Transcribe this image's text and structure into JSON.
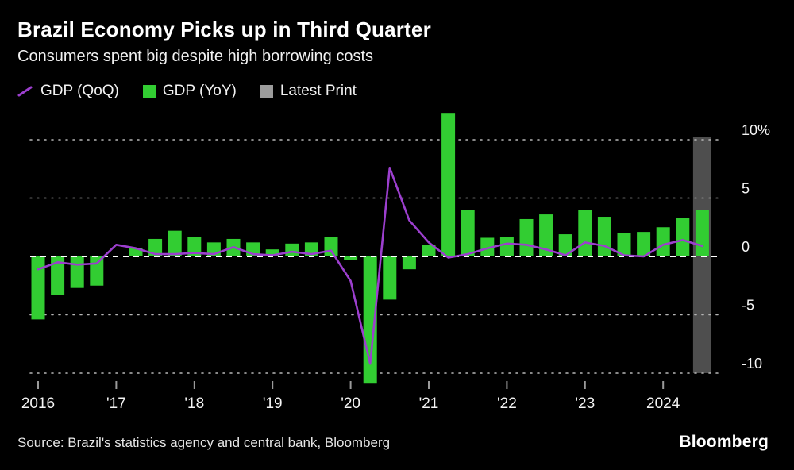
{
  "header": {
    "title": "Brazil Economy Picks up in Third Quarter",
    "subtitle": "Consumers spent big despite high borrowing costs"
  },
  "legend": {
    "items": [
      {
        "label": "GDP (QoQ)",
        "type": "line",
        "swatch_color": "#9c3fce"
      },
      {
        "label": "GDP (YoY)",
        "type": "square",
        "swatch_color": "#32cd32"
      },
      {
        "label": "Latest Print",
        "type": "square",
        "swatch_color": "#9c9c9c"
      }
    ]
  },
  "chart_data": {
    "type": "bar+line",
    "title": "Brazil Economy Picks up in Third Quarter",
    "subtitle": "Consumers spent big despite high borrowing costs",
    "categories": [
      "2016 Q1",
      "2016 Q2",
      "2016 Q3",
      "2016 Q4",
      "2017 Q1",
      "2017 Q2",
      "2017 Q3",
      "2017 Q4",
      "2018 Q1",
      "2018 Q2",
      "2018 Q3",
      "2018 Q4",
      "2019 Q1",
      "2019 Q2",
      "2019 Q3",
      "2019 Q4",
      "2020 Q1",
      "2020 Q2",
      "2020 Q3",
      "2020 Q4",
      "2021 Q1",
      "2021 Q2",
      "2021 Q3",
      "2021 Q4",
      "2022 Q1",
      "2022 Q2",
      "2022 Q3",
      "2022 Q4",
      "2023 Q1",
      "2023 Q2",
      "2023 Q3",
      "2023 Q4",
      "2024 Q1",
      "2024 Q2",
      "2024 Q3"
    ],
    "series": [
      {
        "name": "GDP (YoY)",
        "type": "bar",
        "color": "#32cd32",
        "values": [
          -5.4,
          -3.3,
          -2.7,
          -2.5,
          0.0,
          0.7,
          1.5,
          2.2,
          1.7,
          1.2,
          1.5,
          1.2,
          0.6,
          1.1,
          1.2,
          1.7,
          -0.3,
          -10.9,
          -3.7,
          -1.1,
          1.0,
          12.3,
          4.0,
          1.6,
          1.7,
          3.2,
          3.6,
          1.9,
          4.0,
          3.4,
          2.0,
          2.1,
          2.5,
          3.3,
          4.0
        ]
      },
      {
        "name": "GDP (QoQ)",
        "type": "line",
        "color": "#9c3fce",
        "values": [
          -1.1,
          -0.5,
          -0.7,
          -0.6,
          1.0,
          0.7,
          0.2,
          0.2,
          0.3,
          0.2,
          0.8,
          0.2,
          0.1,
          0.4,
          0.2,
          0.5,
          -2.1,
          -9.2,
          7.6,
          3.1,
          1.2,
          -0.1,
          0.2,
          0.7,
          1.1,
          1.0,
          0.6,
          0.1,
          1.2,
          0.9,
          0.1,
          0.0,
          1.0,
          1.4,
          0.9
        ]
      }
    ],
    "latest_print_index": 34,
    "latest_print_color": "#4e4e4e",
    "ylim": [
      -11.5,
      13
    ],
    "y_gridlines": [
      10,
      5,
      -5,
      -10
    ],
    "y_ticks": [
      {
        "value": 10,
        "label": "10%"
      },
      {
        "value": 5,
        "label": "5"
      },
      {
        "value": 0,
        "label": "0"
      },
      {
        "value": -5,
        "label": "-5"
      },
      {
        "value": -10,
        "label": "-10"
      }
    ],
    "x_ticks": [
      {
        "index": 0,
        "label": "2016"
      },
      {
        "index": 4,
        "label": "'17"
      },
      {
        "index": 8,
        "label": "'18"
      },
      {
        "index": 12,
        "label": "'19"
      },
      {
        "index": 16,
        "label": "'20"
      },
      {
        "index": 20,
        "label": "'21"
      },
      {
        "index": 24,
        "label": "'22"
      },
      {
        "index": 28,
        "label": "'23"
      },
      {
        "index": 32,
        "label": "2024"
      }
    ],
    "grid": "dotted horizontal",
    "zero_line": "white dashed",
    "legend_position": "top-left"
  },
  "footer": {
    "source": "Source: Brazil's statistics agency and central bank, Bloomberg",
    "logo": "Bloomberg"
  }
}
